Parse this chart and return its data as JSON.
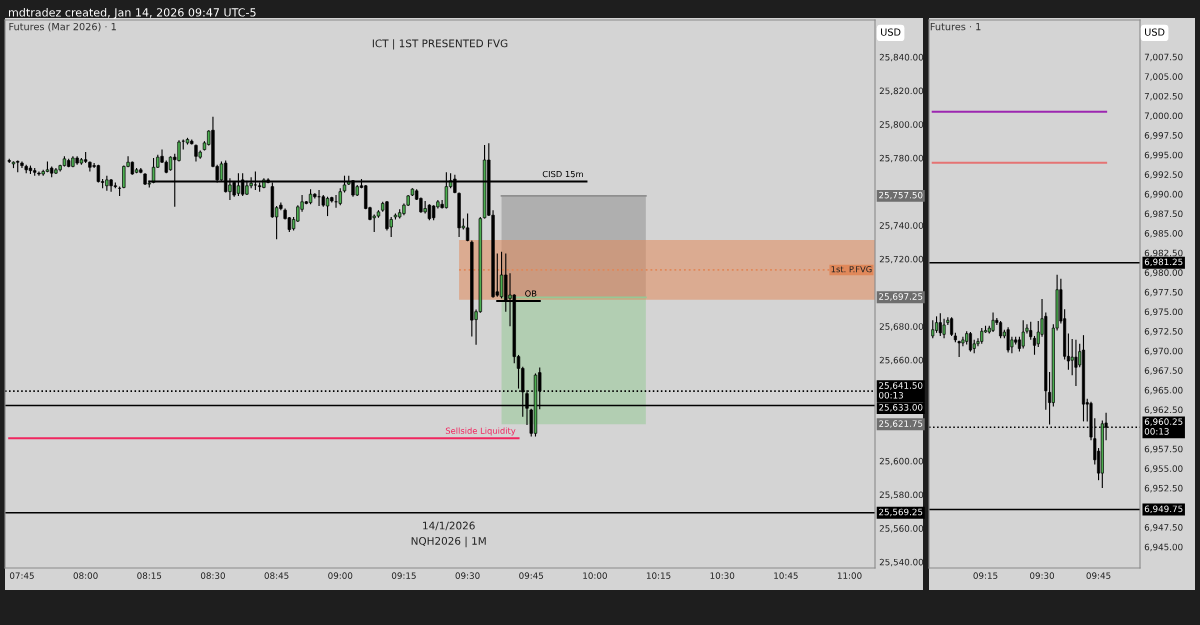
{
  "chart_data": [
    {
      "type": "candlestick",
      "title": "Futures (Mar 2026) · 1",
      "subtitle": "ICT | 1ST PRESENTED FVG",
      "x": [
        "2026-01-14T07:42",
        "2026-01-14T07:43",
        "2026-01-14T07:44",
        "2026-01-14T07:45",
        "2026-01-14T07:46",
        "2026-01-14T07:47",
        "2026-01-14T07:48",
        "2026-01-14T07:49",
        "2026-01-14T07:50",
        "2026-01-14T07:51",
        "2026-01-14T07:52",
        "2026-01-14T07:53",
        "2026-01-14T07:54",
        "2026-01-14T07:55",
        "2026-01-14T07:56",
        "2026-01-14T07:57",
        "2026-01-14T07:58",
        "2026-01-14T07:59",
        "2026-01-14T08:00",
        "2026-01-14T08:01",
        "2026-01-14T08:02",
        "2026-01-14T08:03",
        "2026-01-14T08:04",
        "2026-01-14T08:05",
        "2026-01-14T08:06",
        "2026-01-14T08:07",
        "2026-01-14T08:08",
        "2026-01-14T08:09",
        "2026-01-14T08:10",
        "2026-01-14T08:11",
        "2026-01-14T08:12",
        "2026-01-14T08:13",
        "2026-01-14T08:14",
        "2026-01-14T08:15",
        "2026-01-14T08:16",
        "2026-01-14T08:17",
        "2026-01-14T08:18",
        "2026-01-14T08:19",
        "2026-01-14T08:20",
        "2026-01-14T08:21",
        "2026-01-14T08:22",
        "2026-01-14T08:23",
        "2026-01-14T08:24",
        "2026-01-14T08:25",
        "2026-01-14T08:26",
        "2026-01-14T08:27",
        "2026-01-14T08:28",
        "2026-01-14T08:29",
        "2026-01-14T08:30",
        "2026-01-14T08:31",
        "2026-01-14T08:32",
        "2026-01-14T08:33",
        "2026-01-14T08:34",
        "2026-01-14T08:35",
        "2026-01-14T08:36",
        "2026-01-14T08:37",
        "2026-01-14T08:38",
        "2026-01-14T08:39",
        "2026-01-14T08:40",
        "2026-01-14T08:41",
        "2026-01-14T08:42",
        "2026-01-14T08:43",
        "2026-01-14T08:44",
        "2026-01-14T08:45",
        "2026-01-14T08:46",
        "2026-01-14T08:47",
        "2026-01-14T08:48",
        "2026-01-14T08:49",
        "2026-01-14T08:50",
        "2026-01-14T08:51",
        "2026-01-14T08:52",
        "2026-01-14T08:53",
        "2026-01-14T08:54",
        "2026-01-14T08:55",
        "2026-01-14T08:56",
        "2026-01-14T08:57",
        "2026-01-14T08:58",
        "2026-01-14T08:59",
        "2026-01-14T09:00",
        "2026-01-14T09:01",
        "2026-01-14T09:02",
        "2026-01-14T09:03",
        "2026-01-14T09:04",
        "2026-01-14T09:05",
        "2026-01-14T09:06",
        "2026-01-14T09:07",
        "2026-01-14T09:08",
        "2026-01-14T09:09",
        "2026-01-14T09:10",
        "2026-01-14T09:11",
        "2026-01-14T09:12",
        "2026-01-14T09:13",
        "2026-01-14T09:14",
        "2026-01-14T09:15",
        "2026-01-14T09:16",
        "2026-01-14T09:17",
        "2026-01-14T09:18",
        "2026-01-14T09:19",
        "2026-01-14T09:20",
        "2026-01-14T09:21",
        "2026-01-14T09:22",
        "2026-01-14T09:23",
        "2026-01-14T09:24",
        "2026-01-14T09:25",
        "2026-01-14T09:26",
        "2026-01-14T09:27",
        "2026-01-14T09:28",
        "2026-01-14T09:29",
        "2026-01-14T09:30",
        "2026-01-14T09:31",
        "2026-01-14T09:32",
        "2026-01-14T09:33",
        "2026-01-14T09:34",
        "2026-01-14T09:35",
        "2026-01-14T09:36",
        "2026-01-14T09:37",
        "2026-01-14T09:38",
        "2026-01-14T09:39",
        "2026-01-14T09:40",
        "2026-01-14T09:41",
        "2026-01-14T09:42",
        "2026-01-14T09:43",
        "2026-01-14T09:44",
        "2026-01-14T09:45",
        "2026-01-14T09:46",
        "2026-01-14T09:47"
      ],
      "ohlc": [
        [
          25778.5,
          25779.5,
          25777,
          25778
        ],
        [
          25776.5,
          25778,
          25774,
          25777.5
        ],
        [
          25778,
          25778.5,
          25771.5,
          25777.5
        ],
        [
          25777,
          25778,
          25774,
          25775.5
        ],
        [
          25775,
          25776,
          25771,
          25773
        ],
        [
          25774,
          25775.5,
          25770.5,
          25772.5
        ],
        [
          25772.5,
          25774,
          25769.5,
          25771.5
        ],
        [
          25771,
          25772,
          25769.5,
          25770.5
        ],
        [
          25770.5,
          25773,
          25769.5,
          25772
        ],
        [
          25772,
          25778,
          25771.5,
          25773
        ],
        [
          25774,
          25775,
          25768.5,
          25771
        ],
        [
          25771,
          25774,
          25770.5,
          25773
        ],
        [
          25773,
          25776,
          25772,
          25775.5
        ],
        [
          25775.5,
          25781,
          25775,
          25779.5
        ],
        [
          25778.5,
          25779.5,
          25774.5,
          25775
        ],
        [
          25775,
          25781,
          25774.5,
          25780
        ],
        [
          25780,
          25781,
          25776,
          25777
        ],
        [
          25777,
          25780,
          25776,
          25779
        ],
        [
          25779,
          25783.5,
          25777,
          25778
        ],
        [
          25777.5,
          25778,
          25772,
          25774.5
        ],
        [
          25775.5,
          25777,
          25774,
          25775
        ],
        [
          25775.5,
          25776,
          25765.5,
          25766
        ],
        [
          25766,
          25767.5,
          25762,
          25765.5
        ],
        [
          25763.5,
          25769.5,
          25760.5,
          25767
        ],
        [
          25767,
          25767.5,
          25760,
          25763.5
        ],
        [
          25763.5,
          25765.5,
          25762,
          25763
        ],
        [
          25762,
          25763,
          25757.5,
          25762
        ],
        [
          25762.5,
          25775.5,
          25762,
          25775
        ],
        [
          25775,
          25781,
          25774.5,
          25777.5
        ],
        [
          25777.5,
          25778,
          25770,
          25770.5
        ],
        [
          25771.5,
          25774,
          25771,
          25773
        ],
        [
          25773,
          25774,
          25771,
          25771.5
        ],
        [
          25770.5,
          25771,
          25764,
          25764.5
        ],
        [
          25764.5,
          25766.5,
          25762.5,
          25765
        ],
        [
          25765.5,
          25780,
          25765,
          25774.5
        ],
        [
          25774.5,
          25782,
          25774,
          25780.5
        ],
        [
          25781,
          25785,
          25777,
          25777.5
        ],
        [
          25777.5,
          25778.5,
          25771,
          25771.5
        ],
        [
          25773,
          25781,
          25772.5,
          25780.5
        ],
        [
          25780.5,
          25782.5,
          25751,
          25779
        ],
        [
          25778.5,
          25790.5,
          25778,
          25789.5
        ],
        [
          25790,
          25791,
          25785,
          25790
        ],
        [
          25789,
          25792,
          25788,
          25791
        ],
        [
          25790,
          25791,
          25788,
          25788.5
        ],
        [
          25787.5,
          25788,
          25778,
          25781
        ],
        [
          25780.5,
          25784.5,
          25779.5,
          25783.5
        ],
        [
          25785,
          25790,
          25784.5,
          25789
        ],
        [
          25788,
          25796.5,
          25787.5,
          25796
        ],
        [
          25796.5,
          25804.5,
          25774.5,
          25775
        ],
        [
          25775,
          25776,
          25765.5,
          25767
        ],
        [
          25767,
          25778,
          25766.5,
          25776.5
        ],
        [
          25777,
          25778.5,
          25759.5,
          25760
        ],
        [
          25760,
          25768,
          25755,
          25764
        ],
        [
          25765.5,
          25766,
          25757,
          25758
        ],
        [
          25759,
          25771,
          25757.5,
          25763.5
        ],
        [
          25767,
          25771,
          25757.5,
          25758.5
        ],
        [
          25758.5,
          25766.5,
          25758,
          25763.5
        ],
        [
          25763.5,
          25768.5,
          25762,
          25765
        ],
        [
          25764,
          25772,
          25761,
          25764
        ],
        [
          25763.5,
          25765.5,
          25760,
          25763
        ],
        [
          25762.5,
          25768,
          25762,
          25767
        ],
        [
          25767,
          25768,
          25765,
          25765.5
        ],
        [
          25763,
          25765.5,
          25744.5,
          25745
        ],
        [
          25745,
          25751.5,
          25731.7,
          25750.5
        ],
        [
          25752,
          25753.5,
          25749,
          25750
        ],
        [
          25749,
          25750,
          25743.5,
          25744
        ],
        [
          25744.5,
          25745,
          25736,
          25737.5
        ],
        [
          25738,
          25745,
          25737,
          25743.5
        ],
        [
          25742.5,
          25752,
          25742,
          25751
        ],
        [
          25749.5,
          25758,
          25748,
          25754
        ],
        [
          25754,
          25754.5,
          25752.5,
          25753
        ],
        [
          25753.5,
          25761.5,
          25752.5,
          25758.5
        ],
        [
          25758.5,
          25759,
          25756,
          25757
        ],
        [
          25757,
          25761,
          25751.5,
          25757
        ],
        [
          25757,
          25758,
          25751,
          25752
        ],
        [
          25751.5,
          25757,
          25745.5,
          25756
        ],
        [
          25756.5,
          25757,
          25753.5,
          25754.5
        ],
        [
          25754,
          25758,
          25750.5,
          25754
        ],
        [
          25753,
          25762,
          25752,
          25760
        ],
        [
          25760.5,
          25769.5,
          25759.5,
          25764
        ],
        [
          25764.5,
          25769.5,
          25764,
          25766
        ],
        [
          25766.5,
          25767,
          25757,
          25758
        ],
        [
          25758,
          25764,
          25757.5,
          25763
        ],
        [
          25763.5,
          25767.5,
          25762,
          25762.5
        ],
        [
          25763.5,
          25764,
          25749.5,
          25750
        ],
        [
          25750.5,
          25751,
          25743,
          25743.5
        ],
        [
          25744.5,
          25746.5,
          25736,
          25745.5
        ],
        [
          25745.5,
          25749,
          25744.5,
          25748
        ],
        [
          25749,
          25754,
          25748,
          25753
        ],
        [
          25754,
          25754.5,
          25737,
          25738
        ],
        [
          25739,
          25745,
          25733,
          25743.5
        ],
        [
          25745,
          25747,
          25743.5,
          25746
        ],
        [
          25745,
          25749.5,
          25744,
          25747.5
        ],
        [
          25747,
          25753,
          25746,
          25752
        ],
        [
          25752,
          25758,
          25751.5,
          25757.5
        ],
        [
          25758,
          25762,
          25757.5,
          25761.5
        ],
        [
          25760.5,
          25761.5,
          25755,
          25755.5
        ],
        [
          25756,
          25756.5,
          25747.5,
          25748
        ],
        [
          25748,
          25754.5,
          25747,
          25750
        ],
        [
          25752,
          25752.5,
          25743,
          25744
        ],
        [
          25751.5,
          25752,
          25743,
          25744.5
        ],
        [
          25751,
          25755,
          25750,
          25754
        ],
        [
          25752.5,
          25755,
          25750,
          25750.5
        ],
        [
          25750.5,
          25771.5,
          25750,
          25763
        ],
        [
          25763,
          25771,
          25762,
          25766.5
        ],
        [
          25767.5,
          25770,
          25759,
          25759.5
        ],
        [
          25759,
          25759.5,
          25733,
          25738.5
        ],
        [
          25738.5,
          25744,
          25737.5,
          25739.5
        ],
        [
          25738.5,
          25747,
          25730.5,
          25731
        ],
        [
          25730,
          25731,
          25674,
          25683.7
        ],
        [
          25684,
          25690,
          25669,
          25688.7
        ],
        [
          25688.7,
          25745,
          25688,
          25744
        ],
        [
          25744.5,
          25787.7,
          25744,
          25778.8
        ],
        [
          25778.8,
          25788.7,
          25745.5,
          25746
        ],
        [
          25746,
          25749,
          25697,
          25697.6
        ],
        [
          25700.5,
          25723.3,
          25697.6,
          25698.5
        ],
        [
          25697.6,
          25724.3,
          25696.6,
          25710.5
        ],
        [
          25710.5,
          25723.3,
          25688.7,
          25695.5
        ],
        [
          25696.6,
          25711.5,
          25680,
          25698.6
        ],
        [
          25698.6,
          25699,
          25658,
          25662
        ],
        [
          25662,
          25663,
          25643,
          25655
        ],
        [
          25655,
          25656,
          25626.3,
          25641
        ],
        [
          25640,
          25642,
          25621.4,
          25631.3
        ],
        [
          25630.3,
          25631,
          25614.5,
          25616.4
        ],
        [
          25616.4,
          25652,
          25614.5,
          25651
        ],
        [
          25652.5,
          25655.6,
          25630.7,
          25641.5
        ]
      ],
      "series": [
        {
          "type": "line",
          "x": [
            "2026-01-14T09:38",
            "2026-01-14T10:12"
          ],
          "values": [
            25757.5,
            25757.5
          ],
          "lower": [
            25697.25,
            25697.25
          ],
          "upper": [
            25757.5,
            25757.5
          ],
          "color": "#8f8f8f"
        },
        {
          "type": "line",
          "x": [
            "2026-01-14T09:38",
            "2026-01-14T10:12"
          ],
          "values": [
            25697.25,
            25697.25
          ],
          "lower": [
            25621.75,
            25621.75
          ],
          "upper": [
            25697.25,
            25697.25
          ],
          "color": "#96c896"
        },
        {
          "type": "line",
          "name": "1st. P.FVG",
          "x": [
            "2026-01-14T09:28",
            "2026-01-14T11:06"
          ],
          "values": [
            25713.5,
            25713.5
          ],
          "lower": [
            25695.75,
            25695.75
          ],
          "upper": [
            25731.25,
            25731.25
          ],
          "color": "#e0885a",
          "line_style": "dotted"
        },
        {
          "type": "line",
          "name": "CISD 15m",
          "x": [
            "2026-01-14T08:15",
            "2026-01-14T09:58"
          ],
          "values": [
            25766,
            25766
          ],
          "color": "#000000"
        },
        {
          "type": "line",
          "name": "OB",
          "x": [
            "2026-01-14T09:37",
            "2026-01-14T09:47"
          ],
          "values": [
            25695,
            25695
          ],
          "color": "#000000"
        },
        {
          "type": "line",
          "name": "Sellside Liquidity",
          "x": [
            "2026-01-14T07:42",
            "2026-01-14T09:42"
          ],
          "values": [
            25613.5,
            25613.5
          ],
          "color": "#f0265f"
        }
      ],
      "ref_lines": [
        {
          "axis": "y",
          "value": 25641.5,
          "label": "25,641.50\n00:13",
          "color": "#000000",
          "line_style": "dotted"
        },
        {
          "axis": "y",
          "value": 25633,
          "label": "25,633.00",
          "color": "#000000",
          "line_style": "solid"
        },
        {
          "axis": "y",
          "value": 25569.25,
          "label": "25,569.25",
          "color": "#000000",
          "line_style": "solid"
        }
      ],
      "annotations": [
        "mdtradez created, Jan 14, 2026 09:47 UTC-5",
        "USD",
        "14/1/2026",
        "NQH2026 | 1M",
        "25,757.50",
        "25,697.25",
        "25,621.75"
      ],
      "xlim": [
        "2026-01-14T07:41",
        "2026-01-14T11:06"
      ],
      "xticks": [
        {
          "value": "2026-01-14T07:45",
          "label": "07:45"
        },
        {
          "value": "2026-01-14T08:00",
          "label": "08:00"
        },
        {
          "value": "2026-01-14T08:15",
          "label": "08:15"
        },
        {
          "value": "2026-01-14T08:30",
          "label": "08:30"
        },
        {
          "value": "2026-01-14T08:45",
          "label": "08:45"
        },
        {
          "value": "2026-01-14T09:00",
          "label": "09:00"
        },
        {
          "value": "2026-01-14T09:15",
          "label": "09:15"
        },
        {
          "value": "2026-01-14T09:30",
          "label": "09:30"
        },
        {
          "value": "2026-01-14T09:45",
          "label": "09:45"
        },
        {
          "value": "2026-01-14T10:00",
          "label": "10:00"
        },
        {
          "value": "2026-01-14T10:15",
          "label": "10:15"
        },
        {
          "value": "2026-01-14T10:30",
          "label": "10:30"
        },
        {
          "value": "2026-01-14T10:45",
          "label": "10:45"
        },
        {
          "value": "2026-01-14T11:00",
          "label": "11:00"
        }
      ],
      "ylim": [
        25536.4,
        25862
      ],
      "yticks": [
        {
          "value": 25840,
          "label": "25,840.00"
        },
        {
          "value": 25820,
          "label": "25,820.00"
        },
        {
          "value": 25800,
          "label": "25,800.00"
        },
        {
          "value": 25780,
          "label": "25,780.00"
        },
        {
          "value": 25740,
          "label": "25,740.00"
        },
        {
          "value": 25720,
          "label": "25,720.00"
        },
        {
          "value": 25680,
          "label": "25,680.00"
        },
        {
          "value": 25660,
          "label": "25,660.00"
        },
        {
          "value": 25600,
          "label": "25,600.00"
        },
        {
          "value": 25580,
          "label": "25,580.00"
        },
        {
          "value": 25560,
          "label": "25,560.00"
        },
        {
          "value": 25540,
          "label": "25,540.00"
        }
      ]
    },
    {
      "type": "candlestick",
      "title": "Futures · 1",
      "x": [
        "2026-01-14T09:01",
        "2026-01-14T09:02",
        "2026-01-14T09:03",
        "2026-01-14T09:04",
        "2026-01-14T09:05",
        "2026-01-14T09:06",
        "2026-01-14T09:07",
        "2026-01-14T09:08",
        "2026-01-14T09:09",
        "2026-01-14T09:10",
        "2026-01-14T09:11",
        "2026-01-14T09:12",
        "2026-01-14T09:13",
        "2026-01-14T09:14",
        "2026-01-14T09:15",
        "2026-01-14T09:16",
        "2026-01-14T09:17",
        "2026-01-14T09:18",
        "2026-01-14T09:19",
        "2026-01-14T09:20",
        "2026-01-14T09:21",
        "2026-01-14T09:22",
        "2026-01-14T09:23",
        "2026-01-14T09:24",
        "2026-01-14T09:25",
        "2026-01-14T09:26",
        "2026-01-14T09:27",
        "2026-01-14T09:28",
        "2026-01-14T09:29",
        "2026-01-14T09:30",
        "2026-01-14T09:31",
        "2026-01-14T09:32",
        "2026-01-14T09:33",
        "2026-01-14T09:34",
        "2026-01-14T09:35",
        "2026-01-14T09:36",
        "2026-01-14T09:37",
        "2026-01-14T09:38",
        "2026-01-14T09:39",
        "2026-01-14T09:40",
        "2026-01-14T09:41",
        "2026-01-14T09:42",
        "2026-01-14T09:43",
        "2026-01-14T09:44",
        "2026-01-14T09:45",
        "2026-01-14T09:46",
        "2026-01-14T09:47"
      ],
      "ohlc": [
        [
          6971.9,
          6973.9,
          6971.6,
          6972.7
        ],
        [
          6972.6,
          6974.4,
          6972.3,
          6973.6
        ],
        [
          6973.6,
          6974.8,
          6971.9,
          6972.3
        ],
        [
          6972.1,
          6974.1,
          6971.6,
          6973.3
        ],
        [
          6973.6,
          6974.3,
          6973.3,
          6973.9
        ],
        [
          6974.1,
          6974.3,
          6971.9,
          6972.1
        ],
        [
          6971.9,
          6972.3,
          6971.1,
          6971.4
        ],
        [
          6971.2,
          6971.3,
          6969.2,
          6971
        ],
        [
          6971,
          6971.8,
          6970.6,
          6971.4
        ],
        [
          6971.2,
          6972.5,
          6970.8,
          6972.2
        ],
        [
          6972.2,
          6972.4,
          6969.9,
          6970.1
        ],
        [
          6970.3,
          6971.4,
          6969.7,
          6970.9
        ],
        [
          6970.9,
          6971.6,
          6970.6,
          6971.2
        ],
        [
          6971.2,
          6972.9,
          6970.9,
          6972.5
        ],
        [
          6972.4,
          6973.2,
          6972.3,
          6972.6
        ],
        [
          6972.4,
          6973.2,
          6972.2,
          6972.9
        ],
        [
          6972.6,
          6974.9,
          6972.4,
          6973.9
        ],
        [
          6973.9,
          6974.2,
          6973.3,
          6973.6
        ],
        [
          6973.6,
          6973.8,
          6971.6,
          6971.9
        ],
        [
          6971.9,
          6972.7,
          6971.6,
          6972.4
        ],
        [
          6972.7,
          6973,
          6969.8,
          6970.1
        ],
        [
          6970.5,
          6971.8,
          6969.7,
          6971.4
        ],
        [
          6971.4,
          6971.8,
          6970.8,
          6971.1
        ],
        [
          6971.4,
          6971.8,
          6969.9,
          6970.3
        ],
        [
          6970.6,
          6973.9,
          6970.3,
          6972.4
        ],
        [
          6972.5,
          6973.4,
          6972.2,
          6972.9
        ],
        [
          6972.6,
          6973.7,
          6971.4,
          6971.8
        ],
        [
          6971.6,
          6971.9,
          6969.5,
          6970.7
        ],
        [
          6970.9,
          6973.8,
          6970.5,
          6972.4
        ],
        [
          6972.1,
          6976.6,
          6971.8,
          6974.1
        ],
        [
          6974.4,
          6974.9,
          6962.5,
          6964.9
        ],
        [
          6964.7,
          6967.3,
          6960.6,
          6963.4
        ],
        [
          6963.4,
          6973.4,
          6962.9,
          6972.9
        ],
        [
          6972.9,
          6979.7,
          6972.6,
          6977.8
        ],
        [
          6977.8,
          6979.2,
          6973.5,
          6973.8
        ],
        [
          6974.1,
          6975.3,
          6968.9,
          6969.3
        ],
        [
          6969.3,
          6972.2,
          6967.6,
          6968.7
        ],
        [
          6968.8,
          6971.5,
          6966.9,
          6969.2
        ],
        [
          6969.2,
          6971.4,
          6965.5,
          6967.9
        ],
        [
          6968.2,
          6970.9,
          6967.9,
          6969.9
        ],
        [
          6970.1,
          6972,
          6961,
          6963.2
        ],
        [
          6963.4,
          6963.9,
          6961,
          6963.2
        ],
        [
          6963.3,
          6963.5,
          6958.6,
          6959
        ],
        [
          6958.8,
          6961.4,
          6955.5,
          6956.1
        ],
        [
          6957.2,
          6957.6,
          6953.5,
          6954.4
        ],
        [
          6954.4,
          6961.1,
          6952.5,
          6960.7
        ],
        [
          6960.8,
          6962.1,
          6958.6,
          6960.25
        ]
      ],
      "series": [
        {
          "type": "line",
          "x": [
            "2026-01-14T09:01",
            "2026-01-14T09:47"
          ],
          "values": [
            7000.5,
            7000.5
          ],
          "color": "#9c27b0"
        },
        {
          "type": "line",
          "x": [
            "2026-01-14T09:01",
            "2026-01-14T09:47"
          ],
          "values": [
            6994,
            6994
          ],
          "color": "#e57373"
        }
      ],
      "ref_lines": [
        {
          "axis": "y",
          "value": 6981.25,
          "label": "6,981.25",
          "color": "#000000",
          "line_style": "solid"
        },
        {
          "axis": "y",
          "value": 6960.25,
          "label": "6,960.25\n00:13",
          "color": "#000000",
          "line_style": "dotted"
        },
        {
          "axis": "y",
          "value": 6949.75,
          "label": "6,949.75",
          "color": "#000000",
          "line_style": "solid"
        }
      ],
      "annotations": [
        "USD"
      ],
      "xlim": [
        "2026-01-14T09:00",
        "2026-01-14T09:56"
      ],
      "xticks": [
        {
          "value": "2026-01-14T09:15",
          "label": "09:15"
        },
        {
          "value": "2026-01-14T09:30",
          "label": "09:30"
        },
        {
          "value": "2026-01-14T09:45",
          "label": "09:45"
        }
      ],
      "ylim": [
        6942.3,
        7012.2
      ],
      "yticks": [
        {
          "value": 7007.5,
          "label": "7,007.50"
        },
        {
          "value": 7005,
          "label": "7,005.00"
        },
        {
          "value": 7002.5,
          "label": "7,002.50"
        },
        {
          "value": 7000,
          "label": "7,000.00"
        },
        {
          "value": 6997.5,
          "label": "6,997.50"
        },
        {
          "value": 6995,
          "label": "6,995.00"
        },
        {
          "value": 6992.5,
          "label": "6,992.50"
        },
        {
          "value": 6990,
          "label": "6,990.00"
        },
        {
          "value": 6987.5,
          "label": "6,987.50"
        },
        {
          "value": 6985,
          "label": "6,985.00"
        },
        {
          "value": 6982.5,
          "label": "6,982.50"
        },
        {
          "value": 6980,
          "label": "6,980.00"
        },
        {
          "value": 6977.5,
          "label": "6,977.50"
        },
        {
          "value": 6975,
          "label": "6,975.00"
        },
        {
          "value": 6972.5,
          "label": "6,972.50"
        },
        {
          "value": 6970,
          "label": "6,970.00"
        },
        {
          "value": 6967.5,
          "label": "6,967.50"
        },
        {
          "value": 6965,
          "label": "6,965.00"
        },
        {
          "value": 6962.5,
          "label": "6,962.50"
        },
        {
          "value": 6957.5,
          "label": "6,957.50"
        },
        {
          "value": 6955,
          "label": "6,955.00"
        },
        {
          "value": 6952.5,
          "label": "6,952.50"
        },
        {
          "value": 6947.5,
          "label": "6,947.50"
        },
        {
          "value": 6945,
          "label": "6,945.00"
        }
      ]
    }
  ]
}
